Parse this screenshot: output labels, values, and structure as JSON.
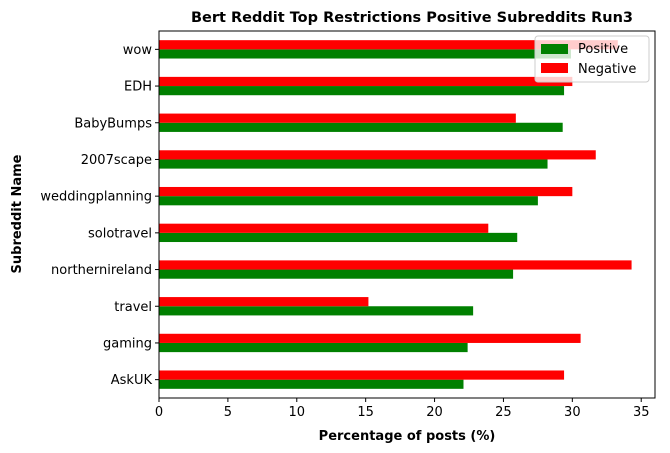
{
  "chart_data": {
    "type": "bar",
    "orientation": "horizontal",
    "title": "Bert Reddit Top Restrictions Positive Subreddits Run3",
    "xlabel": "Percentage of posts (%)",
    "ylabel": "Subreddit Name",
    "xlim": [
      0,
      36
    ],
    "xticks": [
      0,
      5,
      10,
      15,
      20,
      25,
      30,
      35
    ],
    "grid": false,
    "legend_position": "upper-right",
    "categories": [
      "AskUK",
      "gaming",
      "travel",
      "northernireland",
      "solotravel",
      "weddingplanning",
      "2007scape",
      "BabyBumps",
      "EDH",
      "wow"
    ],
    "series": [
      {
        "name": "Positive",
        "color": "#008000",
        "values": [
          22.1,
          22.4,
          22.8,
          25.7,
          26.0,
          27.5,
          28.2,
          29.3,
          29.4,
          29.9
        ]
      },
      {
        "name": "Negative",
        "color": "#ff0000",
        "values": [
          29.4,
          30.6,
          15.2,
          34.3,
          23.9,
          30.0,
          31.7,
          25.9,
          30.0,
          33.3
        ]
      }
    ]
  }
}
